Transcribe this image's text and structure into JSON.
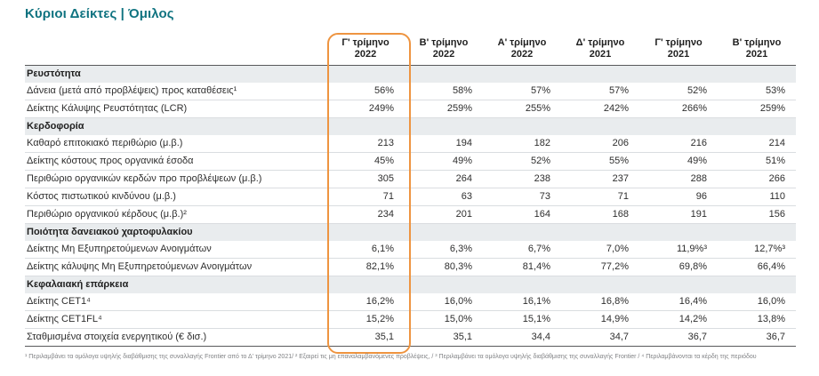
{
  "colors": {
    "title_teal": "#0F7380",
    "highlight_orange": "#EE9440",
    "section_row_bg": "#E9ECEE",
    "header_border": "#58595B",
    "row_border": "#DADDE0",
    "footnote_gray": "#808285"
  },
  "page": {
    "title": "Κύριοι Δείκτες | Όμιλος"
  },
  "table": {
    "columns": [
      {
        "quarter": "Γ' τρίμηνο",
        "year": "2022",
        "highlighted": true
      },
      {
        "quarter": "Β' τρίμηνο",
        "year": "2022",
        "highlighted": false
      },
      {
        "quarter": "Α' τρίμηνο",
        "year": "2022",
        "highlighted": false
      },
      {
        "quarter": "Δ' τρίμηνο",
        "year": "2021",
        "highlighted": false
      },
      {
        "quarter": "Γ' τρίμηνο",
        "year": "2021",
        "highlighted": false
      },
      {
        "quarter": "Β' τρίμηνο",
        "year": "2021",
        "highlighted": false
      }
    ],
    "sections": [
      {
        "header": "Ρευστότητα",
        "rows": [
          {
            "label": "Δάνεια (μετά από προβλέψεις) προς καταθέσεις¹",
            "values": [
              "56%",
              "58%",
              "57%",
              "57%",
              "52%",
              "53%"
            ]
          },
          {
            "label": "Δείκτης Κάλυψης Ρευστότητας (LCR)",
            "values": [
              "249%",
              "259%",
              "255%",
              "242%",
              "266%",
              "259%"
            ]
          }
        ]
      },
      {
        "header": "Κερδοφορία",
        "rows": [
          {
            "label": "Καθαρό επιτοκιακό περιθώριο (μ.β.)",
            "values": [
              "213",
              "194",
              "182",
              "206",
              "216",
              "214"
            ]
          },
          {
            "label": "Δείκτης κόστους προς οργανικά έσοδα",
            "values": [
              "45%",
              "49%",
              "52%",
              "55%",
              "49%",
              "51%"
            ]
          },
          {
            "label": "Περιθώριο οργανικών κερδών προ προβλέψεων (μ.β.)",
            "values": [
              "305",
              "264",
              "238",
              "237",
              "288",
              "266"
            ]
          },
          {
            "label": "Κόστος πιστωτικού κινδύνου (μ.β.)",
            "values": [
              "71",
              "63",
              "73",
              "71",
              "96",
              "110"
            ]
          },
          {
            "label": "Περιθώριο οργανικού κέρδους (μ.β.)²",
            "values": [
              "234",
              "201",
              "164",
              "168",
              "191",
              "156"
            ]
          }
        ]
      },
      {
        "header": "Ποιότητα δανειακού χαρτοφυλακίου",
        "rows": [
          {
            "label": "Δείκτης Μη Εξυπηρετούμενων Ανοιγμάτων",
            "values": [
              "6,1%",
              "6,3%",
              "6,7%",
              "7,0%",
              "11,9%³",
              "12,7%³"
            ]
          },
          {
            "label": "Δείκτης κάλυψης Μη Εξυπηρετούμενων Ανοιγμάτων",
            "values": [
              "82,1%",
              "80,3%",
              "81,4%",
              "77,2%",
              "69,8%",
              "66,4%"
            ]
          }
        ]
      },
      {
        "header": "Κεφαλαιακή επάρκεια",
        "rows": [
          {
            "label": "Δείκτης CET1⁴",
            "values": [
              "16,2%",
              "16,0%",
              "16,1%",
              "16,8%",
              "16,4%",
              "16,0%"
            ]
          },
          {
            "label": "Δείκτης CET1FL⁴",
            "values": [
              "15,2%",
              "15,0%",
              "15,1%",
              "14,9%",
              "14,2%",
              "13,8%"
            ]
          },
          {
            "label": "Σταθμισμένα στοιχεία ενεργητικού (€ δισ.)",
            "values": [
              "35,1",
              "35,1",
              "34,4",
              "34,7",
              "36,7",
              "36,7"
            ]
          }
        ]
      }
    ]
  },
  "footnotes": {
    "text": "¹ Περιλαμβάνει τα ομόλογα υψηλής διαβάθμισης της συναλλαγής Frontier από το Δ' τρίμηνο 2021/ ² Εξαιρεί τις μη επαναλαμβανόμενες προβλέψεις, / ³ Περιλαμβάνει τα ομόλογα υψηλής διαβάθμισης της συναλλαγής Frontier / ⁴ Περιλαμβάνονται τα κέρδη της περιόδου"
  }
}
